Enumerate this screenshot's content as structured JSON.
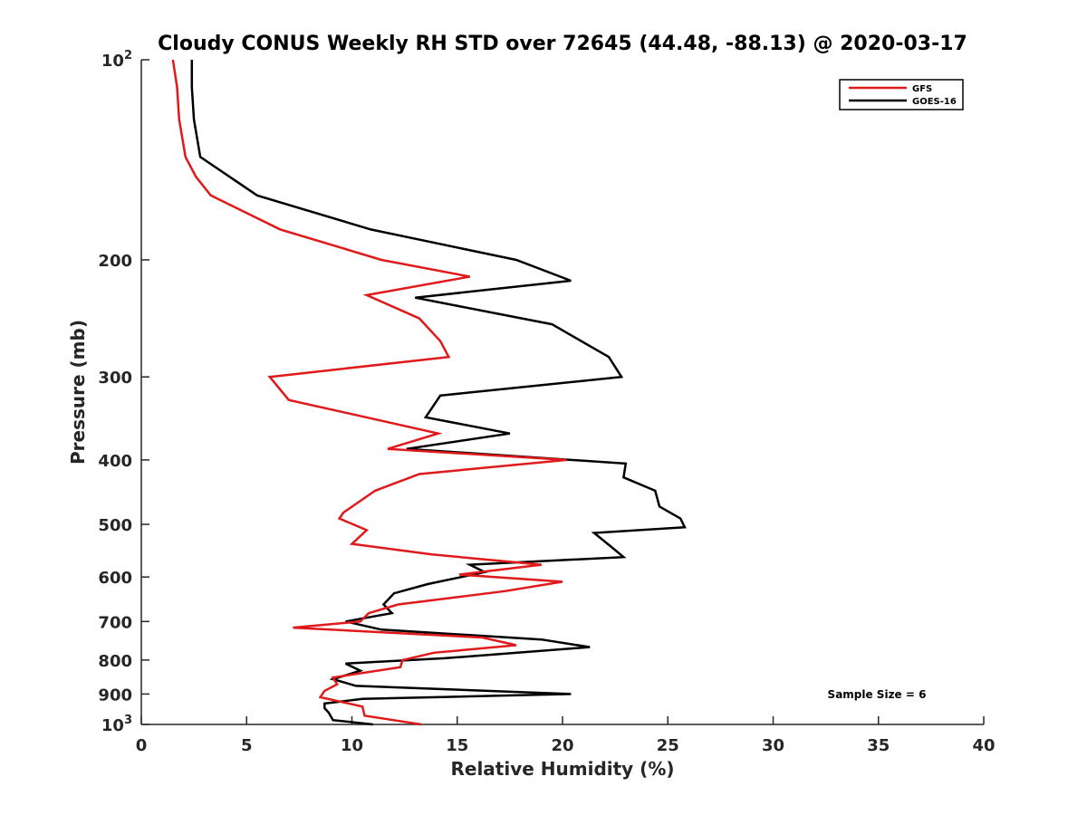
{
  "colors": {
    "gfs": "#e0191b",
    "goes16": "#000000",
    "axis": "#262626"
  },
  "chart_data": {
    "type": "line",
    "title": "Cloudy CONUS Weekly RH STD over 72645 (44.48, -88.13) @ 2020-03-17",
    "xlabel": "Relative Humidity (%)",
    "ylabel": "Pressure (mb)",
    "xlim": [
      0,
      40
    ],
    "ylim": [
      100,
      1000
    ],
    "y_scale": "log",
    "y_reversed": true,
    "grid": false,
    "legend_position": "top-right",
    "x_ticks": [
      {
        "value": 0,
        "label": "0"
      },
      {
        "value": 5,
        "label": "5"
      },
      {
        "value": 10,
        "label": "10"
      },
      {
        "value": 15,
        "label": "15"
      },
      {
        "value": 20,
        "label": "20"
      },
      {
        "value": 25,
        "label": "25"
      },
      {
        "value": 30,
        "label": "30"
      },
      {
        "value": 35,
        "label": "35"
      },
      {
        "value": 40,
        "label": "40"
      }
    ],
    "y_ticks": [
      {
        "value": 100,
        "label": "10",
        "sup": "2"
      },
      {
        "value": 200,
        "label": "200",
        "sup": ""
      },
      {
        "value": 300,
        "label": "300",
        "sup": ""
      },
      {
        "value": 400,
        "label": "400",
        "sup": ""
      },
      {
        "value": 500,
        "label": "500",
        "sup": ""
      },
      {
        "value": 600,
        "label": "600",
        "sup": ""
      },
      {
        "value": 700,
        "label": "700",
        "sup": ""
      },
      {
        "value": 800,
        "label": "800",
        "sup": ""
      },
      {
        "value": 900,
        "label": "900",
        "sup": ""
      },
      {
        "value": 1000,
        "label": "10",
        "sup": "3"
      }
    ],
    "annotation": "Sample Size = 6",
    "series": [
      {
        "name": "GFS",
        "color": "#e0191b",
        "x": [
          1.5,
          1.7,
          1.8,
          2.1,
          2.6,
          3.3,
          6.6,
          11.4,
          15.6,
          10.7,
          13.2,
          14.2,
          14.6,
          6.1,
          7.0,
          14.1,
          11.7,
          20.2,
          13.2,
          11.1,
          9.6,
          9.4,
          10.7,
          10.0,
          13.8,
          19.0,
          15.1,
          20.0,
          17.3,
          12.2,
          10.8,
          10.4,
          7.2,
          16.2,
          17.8,
          13.9,
          12.4,
          12.3,
          9.1,
          9.3,
          8.7,
          8.5,
          10.5,
          10.6,
          13.3
        ],
        "y": [
          100,
          110,
          123,
          140,
          150,
          160,
          180,
          200,
          212,
          226,
          245,
          265,
          280,
          300,
          325,
          365,
          385,
          400,
          420,
          445,
          480,
          490,
          510,
          535,
          555,
          575,
          595,
          610,
          630,
          660,
          680,
          700,
          715,
          740,
          760,
          780,
          800,
          820,
          850,
          870,
          890,
          910,
          940,
          970,
          1000
        ]
      },
      {
        "name": "GOES-16",
        "color": "#000000",
        "x": [
          2.4,
          2.4,
          2.5,
          2.8,
          5.5,
          10.9,
          17.8,
          20.4,
          13.0,
          19.5,
          22.2,
          22.8,
          14.2,
          13.5,
          17.5,
          12.6,
          23.0,
          22.9,
          24.4,
          24.6,
          25.6,
          25.8,
          21.5,
          22.3,
          22.9,
          15.6,
          16.3,
          13.6,
          12.0,
          11.5,
          11.9,
          9.7,
          11.4,
          19.0,
          21.3,
          14.4,
          9.7,
          10.4,
          9.1,
          10.2,
          20.4,
          10.5,
          8.7,
          8.7,
          8.9,
          9.1,
          11.0
        ],
        "y": [
          100,
          110,
          123,
          140,
          160,
          180,
          200,
          215,
          228,
          250,
          280,
          300,
          320,
          345,
          365,
          385,
          405,
          425,
          445,
          470,
          490,
          505,
          515,
          540,
          560,
          575,
          590,
          615,
          635,
          660,
          680,
          700,
          720,
          745,
          765,
          795,
          810,
          830,
          855,
          875,
          900,
          915,
          930,
          945,
          960,
          985,
          1000
        ]
      }
    ]
  }
}
